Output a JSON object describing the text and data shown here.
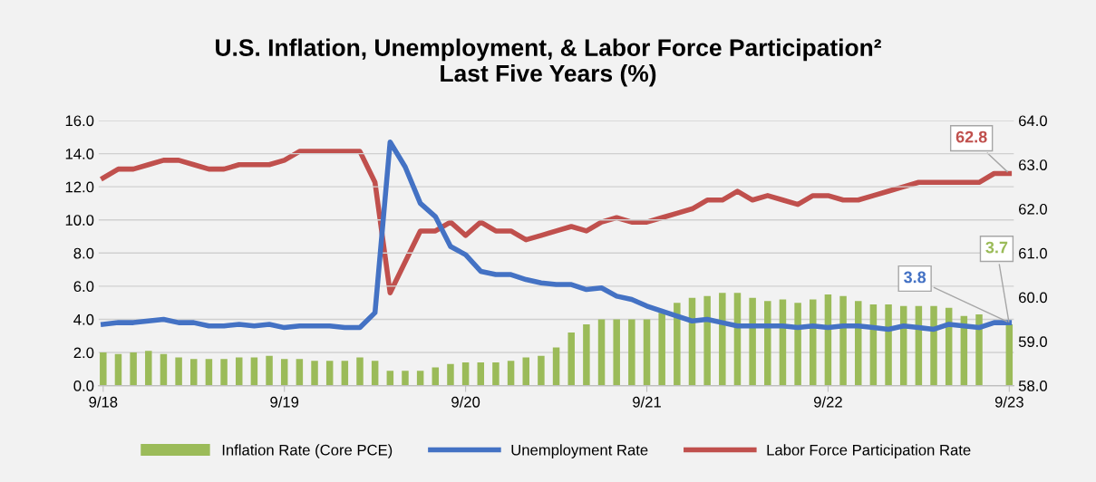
{
  "chart_data": {
    "type": "bar",
    "title": "U.S. Inflation, Unemployment, & Labor Force Participation²\nLast Five Years (%)",
    "categories": [
      "9/18",
      null,
      null,
      null,
      null,
      null,
      null,
      null,
      null,
      null,
      null,
      null,
      "9/19",
      null,
      null,
      null,
      null,
      null,
      null,
      null,
      null,
      null,
      null,
      null,
      "9/20",
      null,
      null,
      null,
      null,
      null,
      null,
      null,
      null,
      null,
      null,
      null,
      "9/21",
      null,
      null,
      null,
      null,
      null,
      null,
      null,
      null,
      null,
      null,
      null,
      "9/22",
      null,
      null,
      null,
      null,
      null,
      null,
      null,
      null,
      null,
      null,
      null,
      "9/23"
    ],
    "series": [
      {
        "name": "Inflation Rate (Core PCE)",
        "color": "#9bbb59",
        "values": [
          2.0,
          1.9,
          2.0,
          2.1,
          1.9,
          1.7,
          1.6,
          1.6,
          1.6,
          1.7,
          1.7,
          1.8,
          1.6,
          1.6,
          1.5,
          1.5,
          1.5,
          1.7,
          1.5,
          0.9,
          0.9,
          0.9,
          1.1,
          1.3,
          1.4,
          1.4,
          1.4,
          1.5,
          1.7,
          1.8,
          2.3,
          3.2,
          3.7,
          4.0,
          4.0,
          4.0,
          4.0,
          4.4,
          5.0,
          5.3,
          5.4,
          5.6,
          5.6,
          5.3,
          5.1,
          5.2,
          5.0,
          5.2,
          5.5,
          5.4,
          5.1,
          4.9,
          4.9,
          4.8,
          4.8,
          4.8,
          4.7,
          4.2,
          4.3,
          null,
          3.7
        ],
        "value_labels": [
          null,
          null,
          null,
          null,
          null,
          null,
          null,
          null,
          null,
          null,
          null,
          null,
          null,
          null,
          null,
          null,
          null,
          null,
          null,
          null,
          null,
          null,
          null,
          null,
          null,
          null,
          null,
          null,
          null,
          null,
          null,
          null,
          null,
          null,
          null,
          null,
          null,
          null,
          null,
          null,
          null,
          null,
          null,
          null,
          null,
          null,
          null,
          null,
          null,
          null,
          null,
          null,
          null,
          null,
          null,
          null,
          null,
          null,
          null,
          null,
          "3.7"
        ]
      },
      {
        "name": "Unemployment Rate",
        "type": "line",
        "color": "#4472c4",
        "values": [
          3.7,
          3.8,
          3.8,
          3.9,
          4.0,
          3.8,
          3.8,
          3.6,
          3.6,
          3.7,
          3.6,
          3.7,
          3.5,
          3.6,
          3.6,
          3.6,
          3.5,
          3.5,
          4.4,
          14.7,
          13.2,
          11.0,
          10.2,
          8.4,
          7.9,
          6.9,
          6.7,
          6.7,
          6.4,
          6.2,
          6.1,
          6.1,
          5.8,
          5.9,
          5.4,
          5.2,
          4.8,
          4.5,
          4.2,
          3.9,
          4.0,
          3.8,
          3.6,
          3.6,
          3.6,
          3.6,
          3.5,
          3.6,
          3.5,
          3.6,
          3.6,
          3.5,
          3.4,
          3.6,
          3.5,
          3.4,
          3.7,
          3.6,
          3.5,
          3.8,
          3.8
        ],
        "value_labels": [
          null,
          null,
          null,
          null,
          null,
          null,
          null,
          null,
          null,
          null,
          null,
          null,
          null,
          null,
          null,
          null,
          null,
          null,
          null,
          null,
          null,
          null,
          null,
          null,
          null,
          null,
          null,
          null,
          null,
          null,
          null,
          null,
          null,
          null,
          null,
          null,
          null,
          null,
          null,
          null,
          null,
          null,
          null,
          null,
          null,
          null,
          null,
          null,
          null,
          null,
          null,
          null,
          null,
          null,
          null,
          null,
          null,
          null,
          null,
          null,
          "3.8"
        ]
      },
      {
        "name": "Labor Force Participation Rate",
        "type": "line",
        "axis": "y2",
        "color": "#c0504d",
        "values": [
          62.7,
          62.9,
          62.9,
          63.0,
          63.1,
          63.1,
          63.0,
          62.9,
          62.9,
          63.0,
          63.0,
          63.0,
          63.1,
          63.3,
          63.3,
          63.3,
          63.3,
          63.3,
          62.6,
          60.1,
          60.8,
          61.5,
          61.5,
          61.7,
          61.4,
          61.7,
          61.5,
          61.5,
          61.3,
          61.4,
          61.5,
          61.6,
          61.5,
          61.7,
          61.8,
          61.7,
          61.7,
          61.8,
          61.9,
          62.0,
          62.2,
          62.2,
          62.4,
          62.2,
          62.3,
          62.2,
          62.1,
          62.3,
          62.3,
          62.2,
          62.2,
          62.3,
          62.4,
          62.5,
          62.6,
          62.6,
          62.6,
          62.6,
          62.6,
          62.8,
          62.8
        ],
        "value_labels": [
          null,
          null,
          null,
          null,
          null,
          null,
          null,
          null,
          null,
          null,
          null,
          null,
          null,
          null,
          null,
          null,
          null,
          null,
          null,
          null,
          null,
          null,
          null,
          null,
          null,
          null,
          null,
          null,
          null,
          null,
          null,
          null,
          null,
          null,
          null,
          null,
          null,
          null,
          null,
          null,
          null,
          null,
          null,
          null,
          null,
          null,
          null,
          null,
          null,
          null,
          null,
          null,
          null,
          null,
          null,
          null,
          null,
          null,
          null,
          null,
          "62.8"
        ]
      }
    ],
    "ylim": [
      0,
      16
    ],
    "yticks": [
      {
        "value": 0,
        "label": "0.0"
      },
      {
        "value": 2,
        "label": "2.0"
      },
      {
        "value": 4,
        "label": "4.0"
      },
      {
        "value": 6,
        "label": "6.0"
      },
      {
        "value": 8,
        "label": "8.0"
      },
      {
        "value": 10,
        "label": "10.0"
      },
      {
        "value": 12,
        "label": "12.0"
      },
      {
        "value": 14,
        "label": "14.0"
      },
      {
        "value": 16,
        "label": "16.0"
      }
    ],
    "y2lim": [
      58,
      64
    ],
    "y2ticks": [
      {
        "value": 58,
        "label": "58.0"
      },
      {
        "value": 59,
        "label": "59.0"
      },
      {
        "value": 60,
        "label": "60.0"
      },
      {
        "value": 61,
        "label": "61.0"
      },
      {
        "value": 62,
        "label": "62.0"
      },
      {
        "value": 63,
        "label": "63.0"
      },
      {
        "value": 64,
        "label": "64.0"
      }
    ],
    "grid": "y",
    "legend": "bottom"
  }
}
